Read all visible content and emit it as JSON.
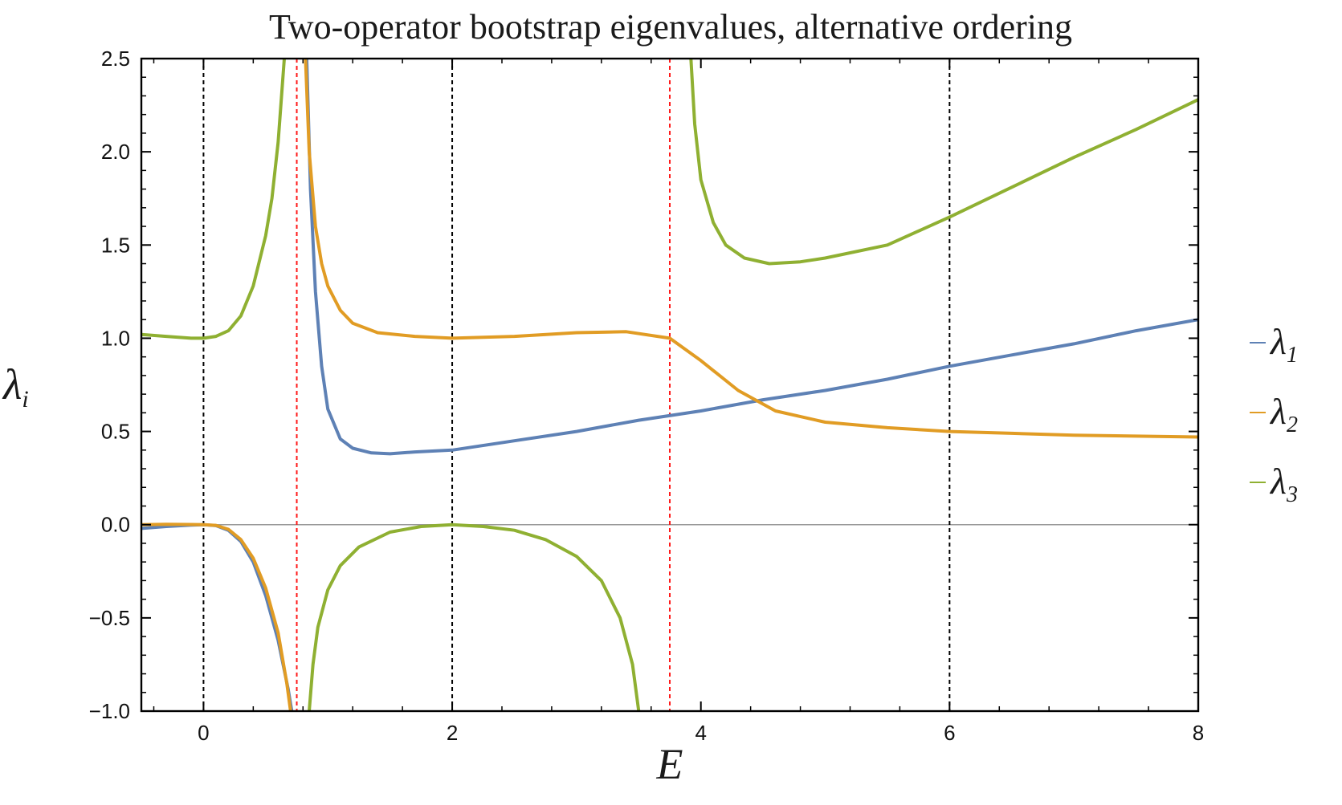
{
  "chart_data": {
    "type": "line",
    "title": "Two-operator bootstrap eigenvalues, alternative ordering",
    "xlabel": "E",
    "ylabel": {
      "symbol": "λ",
      "subscript": "i"
    },
    "xlim": [
      -0.5,
      8
    ],
    "ylim": [
      -1.0,
      2.5
    ],
    "xticks": [
      "0",
      "2",
      "4",
      "6",
      "8"
    ],
    "xtick_values": [
      0,
      2,
      4,
      6,
      8
    ],
    "yticks": [
      "−1.0",
      "−0.5",
      "0.0",
      "0.5",
      "1.0",
      "1.5",
      "2.0",
      "2.5"
    ],
    "ytick_values": [
      -1.0,
      -0.5,
      0.0,
      0.5,
      1.0,
      1.5,
      2.0,
      2.5
    ],
    "grid": false,
    "frame": true,
    "legend_position": "right",
    "reference_lines": {
      "horizontal": [
        {
          "y": 0,
          "color": "#9a9a9a",
          "style": "solid"
        }
      ],
      "vertical": [
        {
          "x": 0,
          "color": "#000000",
          "style": "dashed"
        },
        {
          "x": 0.75,
          "color": "#ff1a1a",
          "style": "dashed"
        },
        {
          "x": 2,
          "color": "#000000",
          "style": "dashed"
        },
        {
          "x": 3.75,
          "color": "#ff1a1a",
          "style": "dashed"
        },
        {
          "x": 6,
          "color": "#000000",
          "style": "dashed"
        }
      ]
    },
    "series": [
      {
        "name": "λ",
        "subscript": "1",
        "color": "#5e81b5",
        "segments": [
          [
            [
              -0.5,
              -0.02
            ],
            [
              -0.3,
              -0.01
            ],
            [
              -0.1,
              -0.002
            ],
            [
              0,
              0
            ],
            [
              0.1,
              -0.005
            ],
            [
              0.2,
              -0.03
            ],
            [
              0.3,
              -0.09
            ],
            [
              0.4,
              -0.2
            ],
            [
              0.5,
              -0.38
            ],
            [
              0.6,
              -0.62
            ],
            [
              0.68,
              -0.88
            ],
            [
              0.71,
              -1.0
            ]
          ],
          [
            [
              0.83,
              2.5
            ],
            [
              0.86,
              1.8
            ],
            [
              0.9,
              1.25
            ],
            [
              0.95,
              0.85
            ],
            [
              1.0,
              0.62
            ],
            [
              1.1,
              0.46
            ],
            [
              1.2,
              0.41
            ],
            [
              1.35,
              0.385
            ],
            [
              1.5,
              0.38
            ],
            [
              1.7,
              0.39
            ],
            [
              2.0,
              0.4
            ],
            [
              2.5,
              0.45
            ],
            [
              3.0,
              0.5
            ],
            [
              3.5,
              0.56
            ],
            [
              4.0,
              0.61
            ],
            [
              4.5,
              0.67
            ],
            [
              5.0,
              0.72
            ],
            [
              5.5,
              0.78
            ],
            [
              6.0,
              0.85
            ],
            [
              6.5,
              0.91
            ],
            [
              7.0,
              0.97
            ],
            [
              7.5,
              1.04
            ],
            [
              8.0,
              1.1
            ]
          ]
        ]
      },
      {
        "name": "λ",
        "subscript": "2",
        "color": "#e19c24",
        "segments": [
          [
            [
              -0.5,
              0.0
            ],
            [
              -0.3,
              0.002
            ],
            [
              -0.1,
              0.001
            ],
            [
              0,
              0
            ],
            [
              0.1,
              -0.004
            ],
            [
              0.2,
              -0.025
            ],
            [
              0.3,
              -0.08
            ],
            [
              0.4,
              -0.18
            ],
            [
              0.5,
              -0.34
            ],
            [
              0.6,
              -0.58
            ],
            [
              0.67,
              -0.85
            ],
            [
              0.7,
              -1.0
            ]
          ],
          [
            [
              0.82,
              2.5
            ],
            [
              0.85,
              2.0
            ],
            [
              0.9,
              1.6
            ],
            [
              0.95,
              1.4
            ],
            [
              1.0,
              1.28
            ],
            [
              1.1,
              1.15
            ],
            [
              1.2,
              1.08
            ],
            [
              1.4,
              1.03
            ],
            [
              1.7,
              1.01
            ],
            [
              2.0,
              1.0
            ],
            [
              2.5,
              1.01
            ],
            [
              3.0,
              1.03
            ],
            [
              3.4,
              1.035
            ],
            [
              3.75,
              1.0
            ],
            [
              4.0,
              0.88
            ],
            [
              4.3,
              0.72
            ],
            [
              4.6,
              0.61
            ],
            [
              5.0,
              0.55
            ],
            [
              5.5,
              0.52
            ],
            [
              6.0,
              0.5
            ],
            [
              6.5,
              0.49
            ],
            [
              7.0,
              0.48
            ],
            [
              7.5,
              0.475
            ],
            [
              8.0,
              0.47
            ]
          ]
        ]
      },
      {
        "name": "λ",
        "subscript": "3",
        "color": "#8fb032",
        "segments": [
          [
            [
              -0.5,
              1.02
            ],
            [
              -0.3,
              1.01
            ],
            [
              -0.1,
              1.0
            ],
            [
              0,
              1.0
            ],
            [
              0.1,
              1.01
            ],
            [
              0.2,
              1.04
            ],
            [
              0.3,
              1.12
            ],
            [
              0.4,
              1.28
            ],
            [
              0.5,
              1.55
            ],
            [
              0.55,
              1.75
            ],
            [
              0.6,
              2.05
            ],
            [
              0.65,
              2.5
            ]
          ],
          [
            [
              0.85,
              -1.0
            ],
            [
              0.88,
              -0.75
            ],
            [
              0.92,
              -0.55
            ],
            [
              1.0,
              -0.35
            ],
            [
              1.1,
              -0.22
            ],
            [
              1.25,
              -0.12
            ],
            [
              1.5,
              -0.04
            ],
            [
              1.75,
              -0.01
            ],
            [
              2.0,
              0.0
            ],
            [
              2.25,
              -0.01
            ],
            [
              2.5,
              -0.03
            ],
            [
              2.75,
              -0.08
            ],
            [
              3.0,
              -0.17
            ],
            [
              3.2,
              -0.3
            ],
            [
              3.35,
              -0.5
            ],
            [
              3.45,
              -0.75
            ],
            [
              3.5,
              -1.0
            ]
          ],
          [
            [
              3.92,
              2.5
            ],
            [
              3.95,
              2.15
            ],
            [
              4.0,
              1.85
            ],
            [
              4.1,
              1.62
            ],
            [
              4.2,
              1.5
            ],
            [
              4.35,
              1.43
            ],
            [
              4.55,
              1.4
            ],
            [
              4.8,
              1.41
            ],
            [
              5.0,
              1.43
            ],
            [
              5.5,
              1.5
            ],
            [
              6.0,
              1.65
            ],
            [
              6.5,
              1.81
            ],
            [
              7.0,
              1.97
            ],
            [
              7.5,
              2.12
            ],
            [
              8.0,
              2.28
            ]
          ]
        ]
      }
    ]
  }
}
